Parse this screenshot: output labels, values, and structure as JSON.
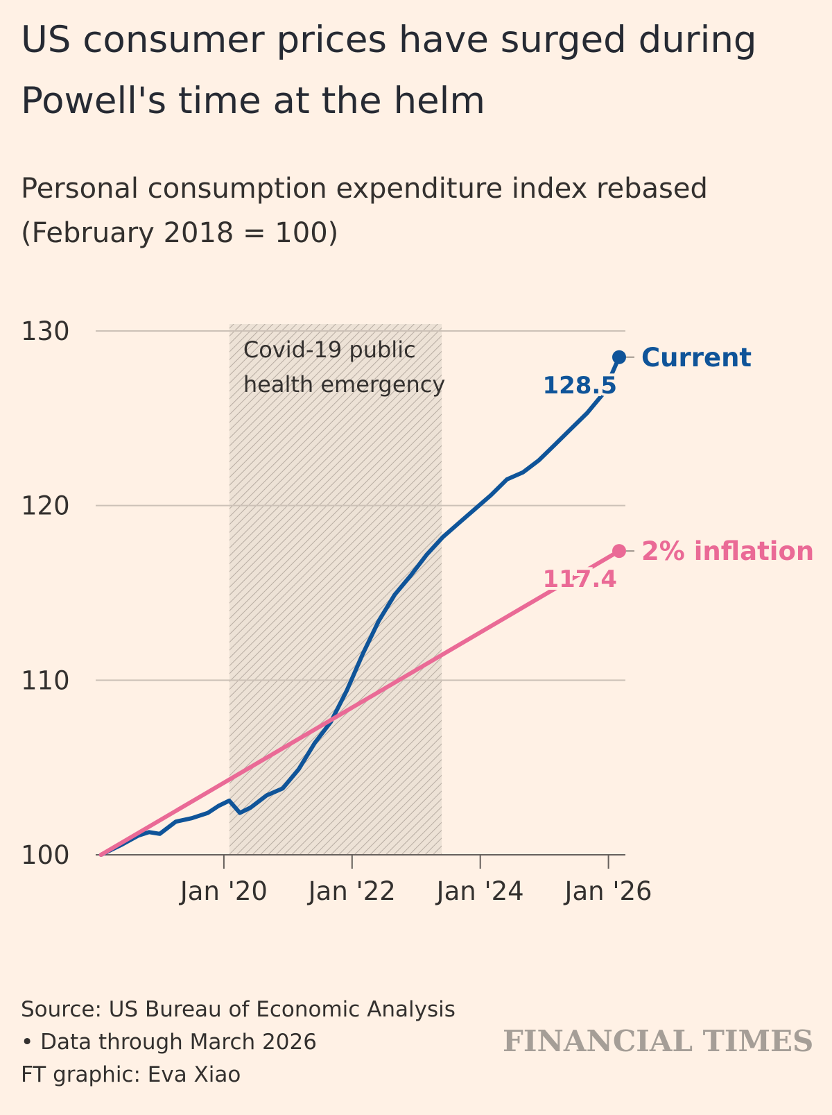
{
  "title": "US consumer prices have surged during Powell's time at the helm",
  "subtitle": "Personal consumption expenditure index rebased (February 2018 = 100)",
  "colors": {
    "background": "#fff1e5",
    "current": "#0f5499",
    "inflation": "#ea6a96",
    "grid": "#ccc1b7",
    "logo": "#a59e97"
  },
  "chart_data": {
    "type": "line",
    "title": "US consumer prices have surged during Powell's time at the helm",
    "ylabel": "",
    "xlabel": "",
    "ylim": [
      100,
      130
    ],
    "xlim": [
      "2018-02",
      "2026-03"
    ],
    "yticks": [
      "100",
      "110",
      "120",
      "130"
    ],
    "xticks": [
      {
        "date": "2020-01",
        "label": "Jan '20"
      },
      {
        "date": "2022-01",
        "label": "Jan '22"
      },
      {
        "date": "2024-01",
        "label": "Jan '24"
      },
      {
        "date": "2026-01",
        "label": "Jan '26"
      }
    ],
    "grid": true,
    "shaded_region": {
      "start": "2020-01",
      "end": "2023-05",
      "label_line1": "Covid-19 public",
      "label_line2": "health emergency"
    },
    "series": [
      {
        "name": "Current",
        "end_value": "128.5",
        "points": [
          [
            "2018-02",
            100.0
          ],
          [
            "2018-06",
            100.6
          ],
          [
            "2018-09",
            101.1
          ],
          [
            "2018-11",
            101.3
          ],
          [
            "2019-01",
            101.2
          ],
          [
            "2019-04",
            101.9
          ],
          [
            "2019-07",
            102.1
          ],
          [
            "2019-10",
            102.4
          ],
          [
            "2019-12",
            102.8
          ],
          [
            "2020-02",
            103.1
          ],
          [
            "2020-04",
            102.4
          ],
          [
            "2020-06",
            102.7
          ],
          [
            "2020-09",
            103.4
          ],
          [
            "2020-12",
            103.8
          ],
          [
            "2021-03",
            104.9
          ],
          [
            "2021-06",
            106.4
          ],
          [
            "2021-09",
            107.6
          ],
          [
            "2021-12",
            109.4
          ],
          [
            "2022-03",
            111.5
          ],
          [
            "2022-06",
            113.4
          ],
          [
            "2022-09",
            114.9
          ],
          [
            "2022-12",
            116.0
          ],
          [
            "2023-03",
            117.2
          ],
          [
            "2023-06",
            118.2
          ],
          [
            "2023-09",
            119.0
          ],
          [
            "2023-12",
            119.8
          ],
          [
            "2024-03",
            120.6
          ],
          [
            "2024-06",
            121.5
          ],
          [
            "2024-09",
            121.9
          ],
          [
            "2024-12",
            122.6
          ],
          [
            "2025-03",
            123.5
          ],
          [
            "2025-06",
            124.4
          ],
          [
            "2025-09",
            125.3
          ],
          [
            "2025-12",
            126.4
          ],
          [
            "2026-03",
            128.5
          ]
        ]
      },
      {
        "name": "2% inflation",
        "end_value": "117.4",
        "points": [
          [
            "2018-02",
            100.0
          ],
          [
            "2026-03",
            117.4
          ]
        ]
      }
    ]
  },
  "footer": {
    "source": "Source: US Bureau of Economic Analysis",
    "note": "• Data through March 2026",
    "credit": "FT graphic: Eva Xiao"
  },
  "logo_text": "FINANCIAL TIMES"
}
